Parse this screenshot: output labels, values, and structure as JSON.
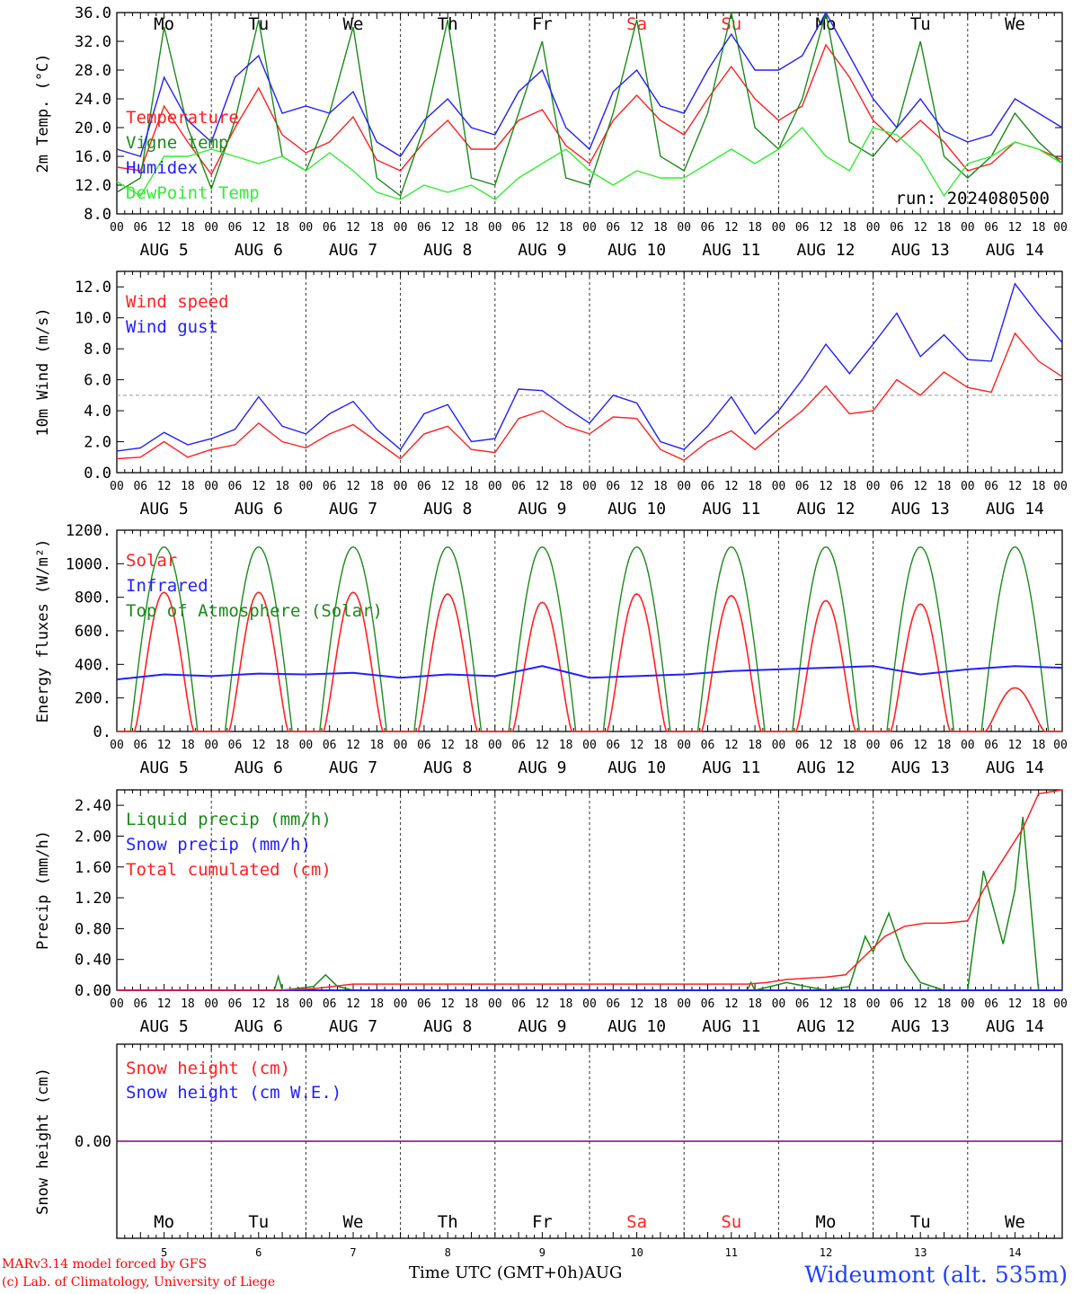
{
  "days": {
    "labels": [
      "AUG  5",
      "AUG  6",
      "AUG  7",
      "AUG  8",
      "AUG  9",
      "AUG 10",
      "AUG 11",
      "AUG 12",
      "AUG 13",
      "AUG 14"
    ],
    "weekdays": [
      "Mo",
      "Tu",
      "We",
      "Th",
      "Fr",
      "Sa",
      "Su",
      "Mo",
      "Tu",
      "We"
    ],
    "weekend": [
      false,
      false,
      false,
      false,
      false,
      true,
      true,
      false,
      false,
      false
    ],
    "numbers": [
      "5",
      "6",
      "7",
      "8",
      "9",
      "10",
      "11",
      "12",
      "13",
      "14"
    ],
    "hour_ticks": [
      "00",
      "06",
      "12",
      "18"
    ],
    "final_tick": "00"
  },
  "colors": {
    "red": "#ff2020",
    "green": "#1a8a1a",
    "blue": "#2020ff",
    "lightgreen": "#33ee33",
    "purple": "#800080",
    "weekend": "#ff2020"
  },
  "footer": {
    "model": "MARv3.14 model forced by GFS",
    "credit": "(c) Lab. of Climatology, University of Liege",
    "xlabel": "Time UTC (GMT+0h)AUG",
    "station": "Wideumont (alt. 535m)"
  },
  "chart_data": [
    {
      "type": "line",
      "ylabel": "2m Temp. (°C)",
      "ylim": [
        8,
        36
      ],
      "yticks": [
        "8.0",
        "12.0",
        "16.0",
        "20.0",
        "24.0",
        "28.0",
        "32.0",
        "36.0"
      ],
      "annotation": "run: 2024080500",
      "legend": [
        "Temperature",
        "Vigne temp",
        "Humidex",
        "DewPoint Temp"
      ],
      "series": [
        {
          "name": "Temperature",
          "color": "red",
          "x": [
            0,
            6,
            12,
            18,
            24,
            30,
            36,
            42,
            48,
            54,
            60,
            66,
            72,
            78,
            84,
            90,
            96,
            102,
            108,
            114,
            120,
            126,
            132,
            138,
            144,
            150,
            156,
            162,
            168,
            174,
            180,
            186,
            192,
            198,
            204,
            210,
            216,
            222,
            228,
            234,
            240
          ],
          "values": [
            14.5,
            14,
            23,
            18,
            13.5,
            20,
            25.5,
            19,
            16.5,
            18,
            21.5,
            15.5,
            14,
            18,
            21,
            17,
            17,
            21,
            22.5,
            17.5,
            15,
            21,
            24.5,
            21,
            19,
            24,
            28.5,
            24,
            21,
            23,
            31.5,
            27,
            21,
            18,
            21,
            18,
            14,
            15,
            18,
            17,
            15.5
          ]
        },
        {
          "name": "Vigne temp",
          "color": "green",
          "x": [
            0,
            6,
            12,
            18,
            24,
            30,
            36,
            42,
            48,
            54,
            60,
            66,
            72,
            78,
            84,
            90,
            96,
            102,
            108,
            114,
            120,
            126,
            132,
            138,
            144,
            150,
            156,
            162,
            168,
            174,
            180,
            186,
            192,
            198,
            204,
            210,
            216,
            222,
            228,
            234,
            240
          ],
          "values": [
            11,
            13,
            34,
            20,
            11.5,
            21,
            35,
            16,
            14,
            22,
            34,
            13,
            10.5,
            20,
            35,
            13,
            12,
            22,
            32,
            13,
            12,
            22,
            35,
            16,
            14,
            22,
            36,
            20,
            17,
            24,
            36,
            18,
            16,
            20,
            32,
            16,
            13,
            16,
            22,
            18,
            15
          ]
        },
        {
          "name": "Humidex",
          "color": "blue",
          "x": [
            0,
            6,
            12,
            18,
            24,
            30,
            36,
            42,
            48,
            54,
            60,
            66,
            72,
            78,
            84,
            90,
            96,
            102,
            108,
            114,
            120,
            126,
            132,
            138,
            144,
            150,
            156,
            162,
            168,
            174,
            180,
            186,
            192,
            198,
            204,
            210,
            216,
            222,
            228,
            234,
            240
          ],
          "values": [
            17,
            16,
            27,
            21,
            18,
            27,
            30,
            22,
            23,
            22,
            25,
            18,
            16,
            21,
            24,
            20,
            19,
            25,
            28,
            20,
            17,
            25,
            28,
            23,
            22,
            28,
            33,
            28,
            28,
            30,
            36,
            30,
            24,
            20,
            24,
            19.5,
            18,
            19,
            24,
            22,
            20
          ]
        },
        {
          "name": "DewPoint Temp",
          "color": "lightgreen",
          "x": [
            0,
            6,
            12,
            18,
            24,
            30,
            36,
            42,
            48,
            54,
            60,
            66,
            72,
            78,
            84,
            90,
            96,
            102,
            108,
            114,
            120,
            126,
            132,
            138,
            144,
            150,
            156,
            162,
            168,
            174,
            180,
            186,
            192,
            198,
            204,
            210,
            216,
            222,
            228,
            234,
            240
          ],
          "values": [
            12.5,
            10.5,
            16,
            16,
            17,
            16,
            15,
            16,
            14,
            16.5,
            14,
            11,
            10,
            12,
            11,
            12,
            10,
            13,
            15,
            17,
            14,
            12,
            14,
            13,
            13,
            15,
            17,
            15,
            17,
            20,
            16,
            14,
            20,
            19,
            16,
            10.5,
            15,
            16,
            18,
            17,
            15
          ]
        }
      ]
    },
    {
      "type": "line",
      "ylabel": "10m Wind (m/s)",
      "ylim": [
        0,
        13
      ],
      "yticks": [
        "0.0",
        "2.0",
        "4.0",
        "6.0",
        "8.0",
        "10.0",
        "12.0"
      ],
      "reference_line": 5,
      "legend": [
        "Wind speed",
        "Wind gust"
      ],
      "series": [
        {
          "name": "Wind speed",
          "color": "red",
          "x": [
            0,
            6,
            12,
            18,
            24,
            30,
            36,
            42,
            48,
            54,
            60,
            66,
            72,
            78,
            84,
            90,
            96,
            102,
            108,
            114,
            120,
            126,
            132,
            138,
            144,
            150,
            156,
            162,
            168,
            174,
            180,
            186,
            192,
            198,
            204,
            210,
            216,
            222,
            228,
            234,
            240
          ],
          "values": [
            0.9,
            1,
            2,
            1,
            1.5,
            1.8,
            3.2,
            2,
            1.6,
            2.5,
            3.1,
            2,
            0.9,
            2.5,
            3,
            1.5,
            1.3,
            3.5,
            4,
            3,
            2.5,
            3.6,
            3.5,
            1.5,
            0.8,
            2,
            2.7,
            1.5,
            2.8,
            4,
            5.6,
            3.8,
            4,
            6,
            5,
            6.5,
            5.5,
            5.2,
            9,
            7.2,
            6.2
          ]
        },
        {
          "name": "Wind gust",
          "color": "blue",
          "x": [
            0,
            6,
            12,
            18,
            24,
            30,
            36,
            42,
            48,
            54,
            60,
            66,
            72,
            78,
            84,
            90,
            96,
            102,
            108,
            114,
            120,
            126,
            132,
            138,
            144,
            150,
            156,
            162,
            168,
            174,
            180,
            186,
            192,
            198,
            204,
            210,
            216,
            222,
            228,
            234,
            240
          ],
          "values": [
            1.4,
            1.6,
            2.6,
            1.8,
            2.2,
            2.8,
            4.9,
            3,
            2.5,
            3.8,
            4.6,
            2.8,
            1.5,
            3.8,
            4.4,
            2,
            2.2,
            5.4,
            5.3,
            4.2,
            3.2,
            5,
            4.5,
            2,
            1.5,
            3,
            4.9,
            2.5,
            4,
            6,
            8.3,
            6.4,
            8.3,
            10.3,
            7.5,
            8.9,
            7.3,
            7.2,
            12.2,
            10.2,
            8.4
          ]
        }
      ]
    },
    {
      "type": "line",
      "ylabel": "Energy fluxes (W/m²)",
      "ylim": [
        0,
        1200
      ],
      "yticks": [
        "0.",
        "200.",
        "400.",
        "600.",
        "800.",
        "1000.",
        "1200."
      ],
      "legend": [
        "Solar",
        "Infrared",
        "Top of Atmosphere (Solar)"
      ],
      "series": [
        {
          "name": "Solar",
          "color": "red",
          "peaks": [
            830,
            830,
            830,
            820,
            770,
            820,
            810,
            780,
            760,
            260
          ]
        },
        {
          "name": "Infrared",
          "color": "blue",
          "x": [
            0,
            12,
            24,
            36,
            48,
            60,
            72,
            84,
            96,
            108,
            120,
            132,
            144,
            156,
            168,
            180,
            192,
            204,
            216,
            228,
            240
          ],
          "values": [
            310,
            340,
            330,
            345,
            340,
            350,
            320,
            340,
            330,
            390,
            320,
            330,
            340,
            360,
            370,
            380,
            390,
            340,
            370,
            390,
            380
          ]
        },
        {
          "name": "Top of Atmosphere (Solar)",
          "color": "green",
          "peak": 1100
        }
      ]
    },
    {
      "type": "line",
      "ylabel": "Precip (mm/h)",
      "ylim": [
        0,
        2.6
      ],
      "yticks": [
        "0.00",
        "0.40",
        "0.80",
        "1.20",
        "1.60",
        "2.00",
        "2.40"
      ],
      "legend": [
        "Liquid precip (mm/h)",
        "Snow precip (mm/h)",
        "Total cumulated (cm)"
      ],
      "series": [
        {
          "name": "Liquid precip (mm/h)",
          "color": "green",
          "x": [
            0,
            40,
            41,
            42,
            50,
            53,
            56,
            60,
            160,
            161,
            162,
            170,
            180,
            186,
            190,
            192,
            196,
            200,
            204,
            210,
            216,
            220,
            225,
            228,
            230,
            234,
            240
          ],
          "values": [
            0,
            0,
            0.18,
            0,
            0.05,
            0.2,
            0.05,
            0,
            0,
            0.1,
            0,
            0.1,
            0,
            0.05,
            0.7,
            0.5,
            1.0,
            0.4,
            0.1,
            0,
            0,
            1.55,
            0.6,
            1.3,
            2.25,
            0,
            0
          ]
        },
        {
          "name": "Snow precip (mm/h)",
          "color": "blue",
          "x": [
            0,
            240
          ],
          "values": [
            0,
            0
          ]
        },
        {
          "name": "Total cumulated (cm)",
          "color": "red",
          "x": [
            0,
            40,
            45,
            50,
            60,
            160,
            165,
            170,
            180,
            185,
            190,
            195,
            200,
            205,
            210,
            216,
            220,
            225,
            230,
            234,
            240
          ],
          "values": [
            0,
            0,
            0.01,
            0.02,
            0.08,
            0.08,
            0.1,
            0.14,
            0.17,
            0.2,
            0.45,
            0.7,
            0.83,
            0.87,
            0.87,
            0.9,
            1.3,
            1.7,
            2.1,
            2.55,
            2.6
          ]
        }
      ]
    },
    {
      "type": "line",
      "ylabel": "Snow height (cm)",
      "ylim": [
        -1,
        1
      ],
      "yticks": [
        "0.00"
      ],
      "legend": [
        "Snow height (cm)",
        "Snow height (cm W.E.)"
      ],
      "series": [
        {
          "name": "Snow height (cm)",
          "color": "red",
          "x": [
            0,
            240
          ],
          "values": [
            0,
            0
          ]
        },
        {
          "name": "Snow height (cm W.E.)",
          "color": "blue",
          "x": [
            0,
            240
          ],
          "values": [
            0,
            0
          ]
        }
      ]
    }
  ]
}
